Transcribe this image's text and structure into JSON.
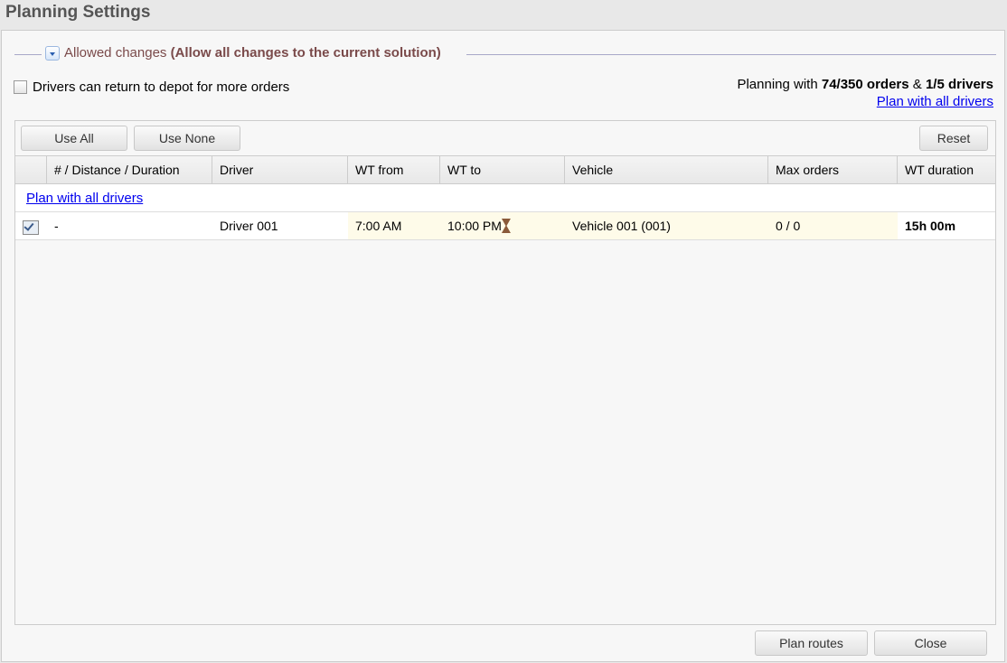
{
  "window": {
    "title": "Planning Settings"
  },
  "allowed_changes": {
    "label": "Allowed changes",
    "value": "(Allow all changes to the current solution)"
  },
  "return_depot": {
    "label": "Drivers can return to depot for more orders",
    "checked": false
  },
  "summary": {
    "prefix": "Planning with ",
    "orders": "74/350 orders",
    "amp": " & ",
    "drivers": "1/5 drivers",
    "link": "Plan with all drivers"
  },
  "toolbar": {
    "use_all": "Use All",
    "use_none": "Use None",
    "reset": "Reset"
  },
  "columns": [
    "",
    "# / Distance / Duration",
    "Driver",
    "WT from",
    "WT to",
    "Vehicle",
    "Max orders",
    "WT duration"
  ],
  "table_link": "Plan with all drivers",
  "rows": [
    {
      "checked": true,
      "distance": "-",
      "driver": "Driver 001",
      "wt_from": "7:00 AM",
      "wt_to": "10:00 PM",
      "vehicle": "Vehicle 001 (001)",
      "max_orders": "0 / 0",
      "wt_duration": "15h 00m"
    }
  ],
  "footer": {
    "plan_routes": "Plan routes",
    "close": "Close"
  }
}
